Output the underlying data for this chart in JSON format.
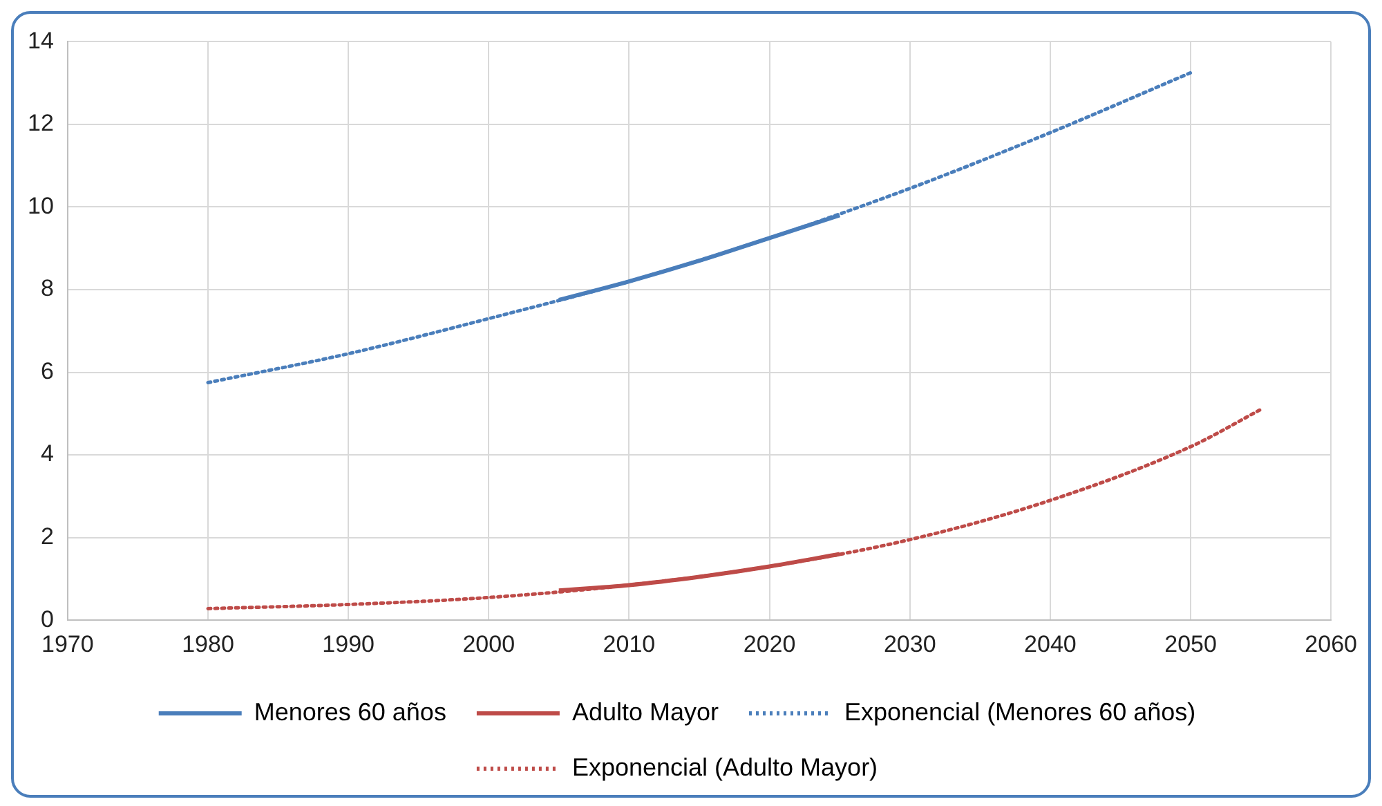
{
  "chart_data": {
    "type": "line",
    "xlim": [
      1970,
      2060
    ],
    "xticks": [
      1970,
      1980,
      1990,
      2000,
      2010,
      2020,
      2030,
      2040,
      2050,
      2060
    ],
    "ylim": [
      0,
      14
    ],
    "yticks": [
      0,
      2,
      4,
      6,
      8,
      10,
      12,
      14
    ],
    "grid": true,
    "legend": "bottom",
    "marker": "none",
    "series": [
      {
        "name": "Menores 60 años",
        "color": "#4a7ebb",
        "line_style": "solid",
        "x": [
          2005,
          2010,
          2015,
          2020,
          2025
        ],
        "values": [
          7.75,
          8.2,
          8.7,
          9.25,
          9.8
        ]
      },
      {
        "name": "Adulto Mayor",
        "color": "#be4b48",
        "line_style": "solid",
        "x": [
          2005,
          2010,
          2015,
          2020,
          2025
        ],
        "values": [
          0.72,
          0.85,
          1.05,
          1.3,
          1.6
        ]
      },
      {
        "name": "Exponencial (Menores 60 años)",
        "color": "#4a7ebb",
        "line_style": "dotted",
        "x": [
          1980,
          1990,
          2000,
          2010,
          2020,
          2030,
          2040,
          2050
        ],
        "values": [
          5.75,
          6.45,
          7.3,
          8.2,
          9.25,
          10.45,
          11.8,
          13.25
        ]
      },
      {
        "name": "Exponencial (Adulto Mayor)",
        "color": "#be4b48",
        "line_style": "dotted",
        "x": [
          1980,
          1990,
          2000,
          2010,
          2020,
          2030,
          2040,
          2050,
          2055
        ],
        "values": [
          0.28,
          0.38,
          0.55,
          0.85,
          1.3,
          1.95,
          2.9,
          4.2,
          5.1
        ]
      }
    ]
  }
}
